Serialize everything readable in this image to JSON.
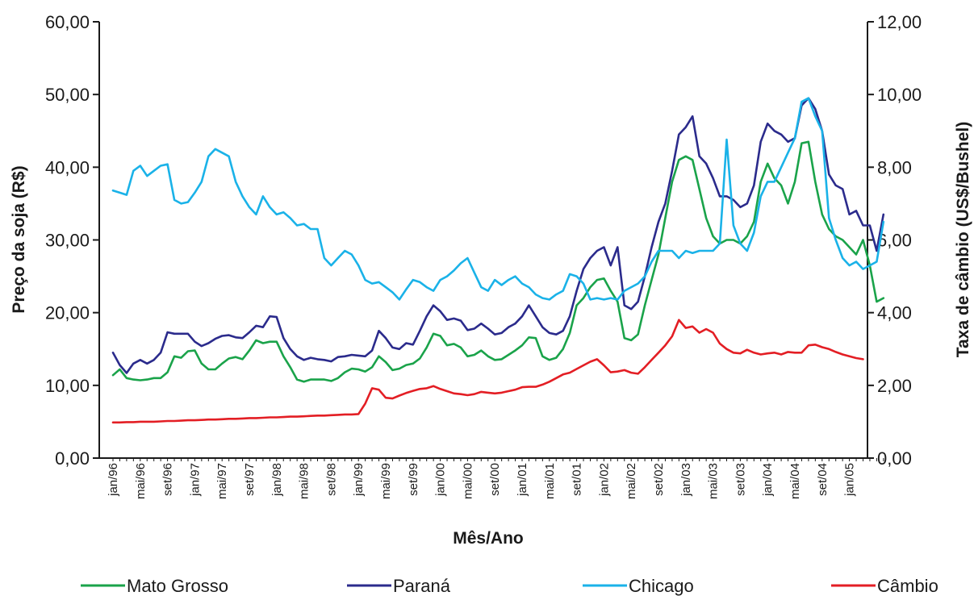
{
  "chart_data": {
    "type": "line",
    "xlabel": "Mês/Ano",
    "ylabel_left": "Preço da soja (R$)",
    "ylabel_right": "Taxa de câmbio (US$/Bushel)",
    "ylim_left": [
      0,
      60
    ],
    "ylim_right": [
      0,
      12
    ],
    "left_ticks": [
      "0,00",
      "10,00",
      "20,00",
      "30,00",
      "40,00",
      "50,00",
      "60,00"
    ],
    "right_ticks": [
      "0,00",
      "2,00",
      "4,00",
      "6,00",
      "8,00",
      "10,00",
      "12,00"
    ],
    "x_tick_labels": [
      "jan/96",
      "mai/96",
      "set/96",
      "jan/97",
      "mai/97",
      "set/97",
      "jan/98",
      "mai/98",
      "set/98",
      "jan/99",
      "mai/99",
      "set/99",
      "jan/00",
      "mai/00",
      "set/00",
      "jan/01",
      "mai/01",
      "set/01",
      "jan/02",
      "mai/02",
      "set/02",
      "jan/03",
      "mai/03",
      "set/03",
      "jan/04",
      "mai/04",
      "set/04",
      "jan/05"
    ],
    "x_start": "jan/96",
    "grid": false,
    "legend_position": "bottom",
    "series": [
      {
        "name": "Mato Grosso",
        "color": "#1aa34a",
        "axis": "left",
        "values": [
          11.4,
          12.2,
          11.0,
          10.8,
          10.7,
          10.8,
          11.0,
          11.0,
          11.8,
          14.0,
          13.8,
          14.7,
          14.8,
          13.0,
          12.2,
          12.2,
          13.0,
          13.7,
          13.9,
          13.6,
          14.8,
          16.2,
          15.8,
          16.0,
          16.0,
          14.0,
          12.5,
          10.8,
          10.5,
          10.8,
          10.8,
          10.8,
          10.6,
          11.0,
          11.8,
          12.3,
          12.2,
          11.9,
          12.5,
          14.0,
          13.2,
          12.1,
          12.3,
          12.8,
          13.0,
          13.7,
          15.2,
          17.1,
          16.8,
          15.5,
          15.7,
          15.2,
          14.0,
          14.2,
          14.8,
          14.0,
          13.5,
          13.6,
          14.2,
          14.8,
          15.5,
          16.6,
          16.5,
          14.0,
          13.5,
          13.8,
          15.0,
          17.2,
          21.0,
          22.0,
          23.5,
          24.5,
          24.7,
          23.0,
          21.5,
          16.5,
          16.2,
          17.0,
          21.0,
          24.5,
          28.0,
          33.0,
          38.0,
          41.0,
          41.5,
          41.0,
          37.0,
          33.0,
          30.5,
          29.5,
          30.0,
          30.0,
          29.5,
          30.5,
          32.5,
          38.0,
          40.5,
          38.5,
          37.5,
          35.0,
          38.0,
          43.3,
          43.5,
          38.0,
          33.5,
          31.5,
          30.5,
          30.0,
          29.0,
          28.0,
          30.0,
          26.5,
          21.5,
          22.0
        ]
      },
      {
        "name": "Paraná",
        "color": "#2b2b8c",
        "axis": "left",
        "values": [
          14.5,
          12.8,
          11.7,
          13.0,
          13.5,
          13.0,
          13.5,
          14.5,
          17.3,
          17.1,
          17.1,
          17.1,
          16.0,
          15.4,
          15.8,
          16.4,
          16.8,
          16.9,
          16.6,
          16.5,
          17.3,
          18.2,
          18.0,
          19.5,
          19.4,
          16.5,
          15.0,
          14.0,
          13.5,
          13.8,
          13.6,
          13.5,
          13.3,
          13.9,
          14.0,
          14.2,
          14.1,
          14.0,
          14.8,
          17.5,
          16.5,
          15.2,
          15.0,
          15.8,
          15.6,
          17.5,
          19.5,
          21.0,
          20.2,
          19.0,
          19.2,
          18.9,
          17.6,
          17.8,
          18.5,
          17.8,
          17.0,
          17.2,
          18.0,
          18.5,
          19.5,
          21.0,
          19.5,
          18.0,
          17.2,
          17.0,
          17.5,
          19.5,
          23.0,
          26.0,
          27.5,
          28.5,
          29.0,
          26.5,
          29.0,
          21.0,
          20.5,
          21.5,
          25.0,
          29.0,
          32.5,
          35.0,
          39.5,
          44.5,
          45.5,
          47.0,
          41.5,
          40.5,
          38.5,
          36.0,
          36.0,
          35.5,
          34.5,
          35.0,
          37.5,
          43.5,
          46.0,
          45.0,
          44.5,
          43.5,
          44.0,
          48.5,
          49.5,
          48.0,
          45.0,
          39.0,
          37.5,
          37.0,
          33.5,
          34.0,
          32.0,
          32.0,
          28.5,
          33.5
        ]
      },
      {
        "name": "Chicago",
        "color": "#1ab2e8",
        "axis": "left",
        "values": [
          36.8,
          36.5,
          36.2,
          39.5,
          40.2,
          38.8,
          39.5,
          40.2,
          40.4,
          35.5,
          35.0,
          35.2,
          36.5,
          38.0,
          41.5,
          42.5,
          42.0,
          41.5,
          38.0,
          36.0,
          34.5,
          33.5,
          36.0,
          34.5,
          33.5,
          33.8,
          33.0,
          32.0,
          32.2,
          31.5,
          31.5,
          27.5,
          26.5,
          27.5,
          28.5,
          28.0,
          26.5,
          24.5,
          24.0,
          24.2,
          23.5,
          22.8,
          21.8,
          23.2,
          24.5,
          24.2,
          23.5,
          23.0,
          24.5,
          25.0,
          25.8,
          26.8,
          27.5,
          25.5,
          23.5,
          23.0,
          24.5,
          23.8,
          24.5,
          25.0,
          24.0,
          23.5,
          22.5,
          22.0,
          21.8,
          22.5,
          23.0,
          25.3,
          25.0,
          24.0,
          21.8,
          22.0,
          21.8,
          22.0,
          21.8,
          23.0,
          23.5,
          24.0,
          25.0,
          27.0,
          28.5,
          28.5,
          28.5,
          27.5,
          28.5,
          28.2,
          28.5,
          28.5,
          28.5,
          29.5,
          43.8,
          32.0,
          29.5,
          28.5,
          31.0,
          36.0,
          38.0,
          38.0,
          40.0,
          42.0,
          44.0,
          49.0,
          49.5,
          47.0,
          45.0,
          33.0,
          30.0,
          27.5,
          26.5,
          27.0,
          26.0,
          26.5,
          27.0,
          32.5
        ]
      },
      {
        "name": "Câmbio",
        "color": "#e31e24",
        "axis": "right",
        "values": [
          0.98,
          0.98,
          0.99,
          0.99,
          1.0,
          1.0,
          1.0,
          1.01,
          1.02,
          1.02,
          1.03,
          1.04,
          1.04,
          1.05,
          1.06,
          1.06,
          1.07,
          1.08,
          1.08,
          1.09,
          1.1,
          1.1,
          1.11,
          1.12,
          1.12,
          1.13,
          1.14,
          1.14,
          1.15,
          1.16,
          1.17,
          1.17,
          1.18,
          1.19,
          1.2,
          1.2,
          1.21,
          1.5,
          1.92,
          1.88,
          1.66,
          1.64,
          1.72,
          1.79,
          1.85,
          1.9,
          1.92,
          1.98,
          1.9,
          1.84,
          1.78,
          1.76,
          1.73,
          1.76,
          1.82,
          1.8,
          1.78,
          1.8,
          1.84,
          1.88,
          1.95,
          1.96,
          1.96,
          2.02,
          2.1,
          2.2,
          2.3,
          2.35,
          2.45,
          2.55,
          2.65,
          2.72,
          2.55,
          2.36,
          2.38,
          2.42,
          2.35,
          2.32,
          2.5,
          2.7,
          2.9,
          3.1,
          3.35,
          3.8,
          3.58,
          3.62,
          3.45,
          3.55,
          3.45,
          3.15,
          3.0,
          2.9,
          2.88,
          2.98,
          2.9,
          2.85,
          2.88,
          2.9,
          2.85,
          2.92,
          2.9,
          2.9,
          3.1,
          3.12,
          3.05,
          3.0,
          2.92,
          2.85,
          2.8,
          2.75,
          2.72
        ]
      }
    ]
  }
}
